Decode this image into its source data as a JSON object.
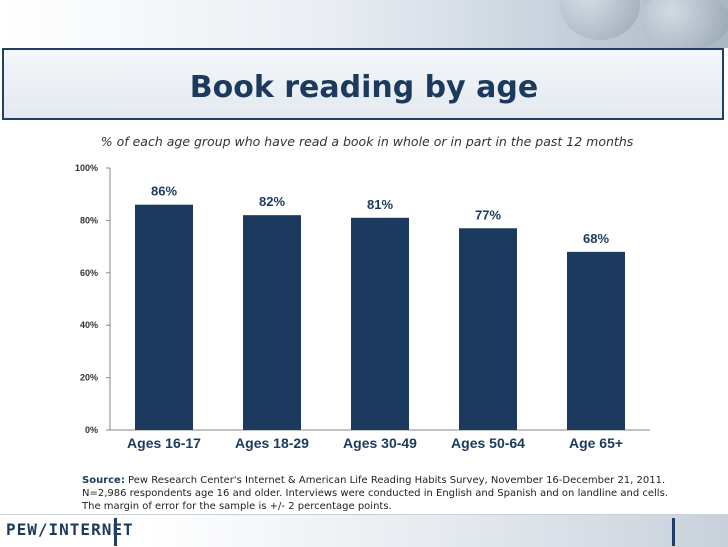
{
  "slide": {
    "title": "Book reading by age",
    "subtitle": "% of each age group who have read a book in whole or in part in the past 12 months",
    "source_label": "Source:",
    "source_text": " Pew Research Center's Internet & American Life Reading Habits Survey, November 16-December 21, 2011. N=2,986 respondents age 16 and older. Interviews were conducted in English and Spanish and on landline and cells. The margin of error for the sample is +/- 2 percentage points.",
    "logo_text": "PEW/INTERNET"
  },
  "colors": {
    "bar": "#1b3a5e",
    "title": "#1b3a5e",
    "axis": "#888888"
  },
  "chart_data": {
    "type": "bar",
    "title": "Book reading by age",
    "subtitle": "% of each age group who have read a book in whole or in part in the past 12 months",
    "categories": [
      "Ages 16-17",
      "Ages 18-29",
      "Ages 30-49",
      "Ages 50-64",
      "Age 65+"
    ],
    "values": [
      86,
      82,
      81,
      77,
      68
    ],
    "value_labels": [
      "86%",
      "82%",
      "81%",
      "77%",
      "68%"
    ],
    "yticks": [
      0,
      20,
      40,
      60,
      80,
      100
    ],
    "ytick_labels": [
      "0%",
      "20%",
      "40%",
      "60%",
      "80%",
      "100%"
    ],
    "ylim": [
      0,
      100
    ],
    "xlabel": "",
    "ylabel": "",
    "grid": false,
    "legend": "none"
  }
}
